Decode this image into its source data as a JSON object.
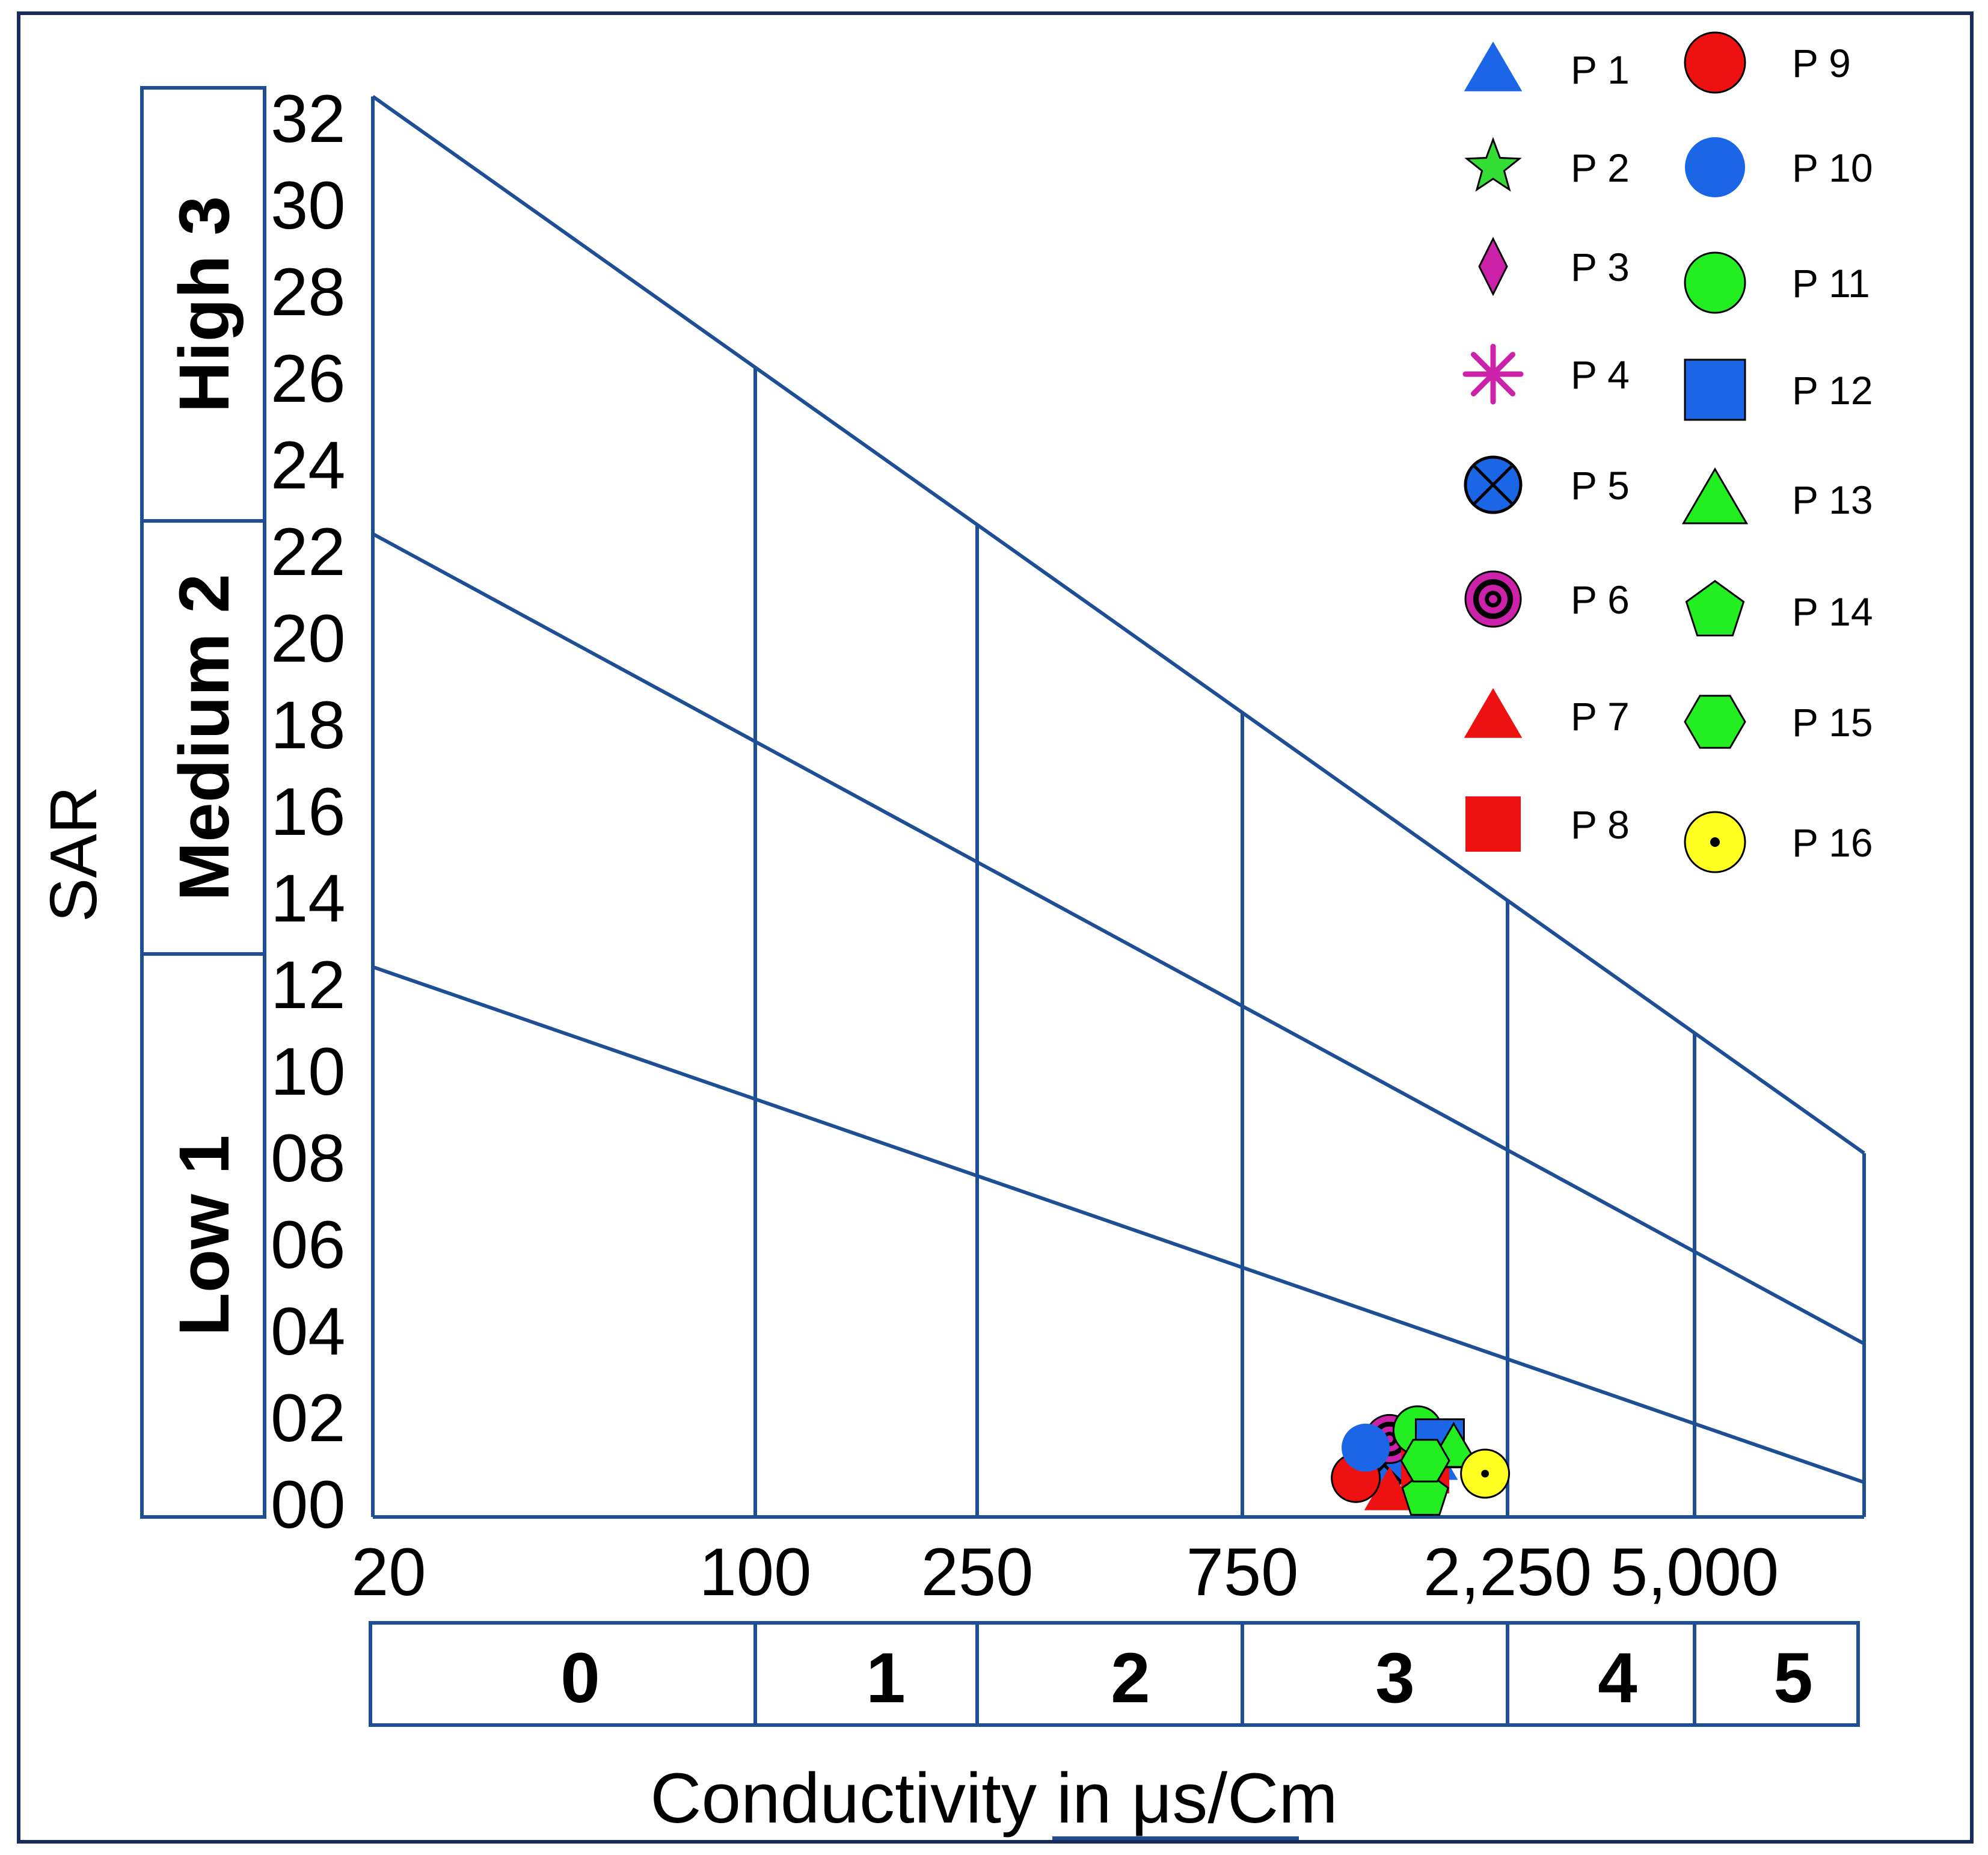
{
  "chart_data": {
    "type": "scatter",
    "title": "",
    "xlabel": "Conductivity in μs/Cm",
    "ylabel": "SAR",
    "ylim": [
      0,
      33
    ],
    "y_ticks": [
      "00",
      "02",
      "04",
      "06",
      "08",
      "10",
      "12",
      "14",
      "16",
      "18",
      "20",
      "22",
      "24",
      "26",
      "28",
      "30",
      "32"
    ],
    "x_boundaries": [
      {
        "label": "20",
        "value": 20
      },
      {
        "label": "100",
        "value": 100
      },
      {
        "label": "250",
        "value": 250
      },
      {
        "label": "750",
        "value": 750
      },
      {
        "label": "2,250",
        "value": 2250
      },
      {
        "label": "5,000",
        "value": 5000
      },
      {
        "label": "",
        "value": 10000
      }
    ],
    "salinity_classes": [
      "0",
      "1",
      "2",
      "3",
      "4",
      "5"
    ],
    "sodium_classes": [
      {
        "label": "Low 1",
        "from": 0,
        "to": 13
      },
      {
        "label": "Medium 2",
        "from": 13,
        "to": 23
      },
      {
        "label": "High 3",
        "from": 23,
        "to": 33
      }
    ],
    "hazard_lines": [
      {
        "name": "low-medium",
        "start": 12.7,
        "end": 0.8
      },
      {
        "name": "medium-high",
        "start": 22.7,
        "end": 4.0
      },
      {
        "name": "upper",
        "start": 32.8,
        "end": 8.4
      }
    ],
    "series": [
      {
        "name": "P 1",
        "symbol": "triangle",
        "fill": "#1a66e6",
        "x": 1650,
        "y": 1.3
      },
      {
        "name": "P 2",
        "symbol": "star",
        "fill": "#33dd33",
        "x": 1600,
        "y": 1.0
      },
      {
        "name": "P 3",
        "symbol": "diamond",
        "fill": "#cc22aa",
        "x": 1500,
        "y": 1.4
      },
      {
        "name": "P 4",
        "symbol": "asterisk",
        "fill": "#cc22aa",
        "x": 1400,
        "y": 1.5
      },
      {
        "name": "P 5",
        "symbol": "circle-x",
        "fill": "#1a66e6",
        "x": 1350,
        "y": 1.2
      },
      {
        "name": "P 6",
        "symbol": "bullseye",
        "fill": "#cc22aa",
        "x": 1380,
        "y": 1.8
      },
      {
        "name": "P 7",
        "symbol": "triangle",
        "fill": "#ee1111",
        "x": 1380,
        "y": 0.6
      },
      {
        "name": "P 8",
        "symbol": "square",
        "fill": "#ee1111",
        "x": 1600,
        "y": 1.1
      },
      {
        "name": "P 9",
        "symbol": "circle",
        "fill": "#ee1111",
        "x": 1200,
        "y": 0.9
      },
      {
        "name": "P 10",
        "symbol": "circle",
        "fill": "#1a66e6",
        "x": 1250,
        "y": 1.6
      },
      {
        "name": "P 11",
        "symbol": "circle",
        "fill": "#22ee22",
        "x": 1550,
        "y": 2.0
      },
      {
        "name": "P 12",
        "symbol": "square",
        "fill": "#1a66e6",
        "x": 1700,
        "y": 1.7
      },
      {
        "name": "P 13",
        "symbol": "triangle",
        "fill": "#22ee22",
        "x": 1800,
        "y": 1.6
      },
      {
        "name": "P 14",
        "symbol": "pentagon",
        "fill": "#22ee22",
        "x": 1600,
        "y": 0.5
      },
      {
        "name": "P 15",
        "symbol": "hexagon",
        "fill": "#22ee22",
        "x": 1600,
        "y": 1.3
      },
      {
        "name": "P 16",
        "symbol": "circle-dot",
        "fill": "#ffff22",
        "x": 2050,
        "y": 1.0
      }
    ],
    "colors": {
      "frame": "#1e4e94",
      "border": "#1a2a5a"
    }
  }
}
